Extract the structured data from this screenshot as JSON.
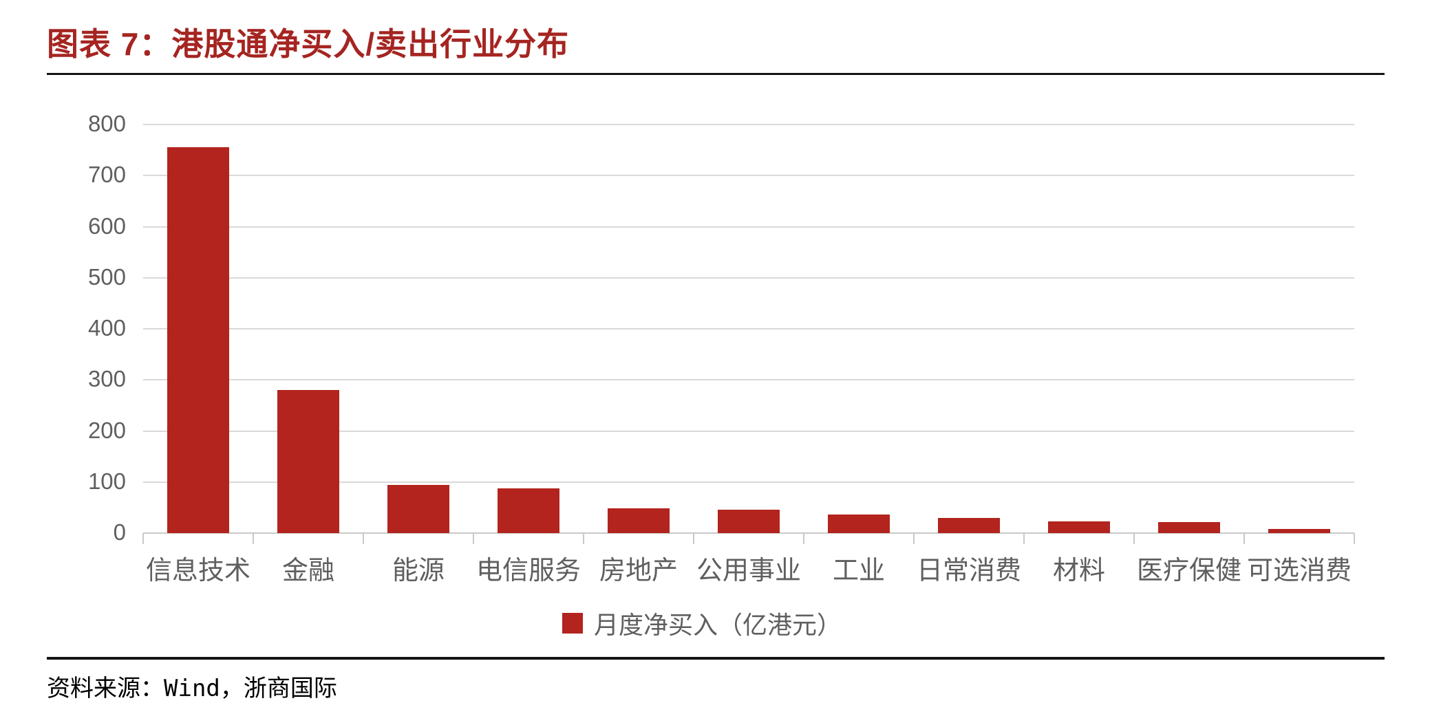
{
  "title": "图表 7：港股通净买入/卖出行业分布",
  "source": "资料来源：Wind，浙商国际",
  "colors": {
    "bar": "#b2241d",
    "title": "#a52521",
    "axis_text": "#5f5f5f",
    "gridline": "#d9d9d9",
    "baseline": "#c9c9c9",
    "divider": "#141414"
  },
  "chart_data": {
    "type": "bar",
    "categories": [
      "信息技术",
      "金融",
      "能源",
      "电信服务",
      "房地产",
      "公用事业",
      "工业",
      "日常消费",
      "材料",
      "医疗保健",
      "可选消费"
    ],
    "values": [
      755,
      280,
      94,
      87,
      48,
      46,
      37,
      30,
      23,
      22,
      8
    ],
    "series_name": "月度净买入（亿港元）",
    "legend": "月度净买入（亿港元）",
    "title": "港股通净买入/卖出行业分布",
    "xlabel": "",
    "ylabel": "",
    "ylim": [
      0,
      800
    ],
    "yticks": [
      0,
      100,
      200,
      300,
      400,
      500,
      600,
      700,
      800
    ],
    "grid": true,
    "legend_position": "bottom",
    "unit": "亿港元"
  }
}
